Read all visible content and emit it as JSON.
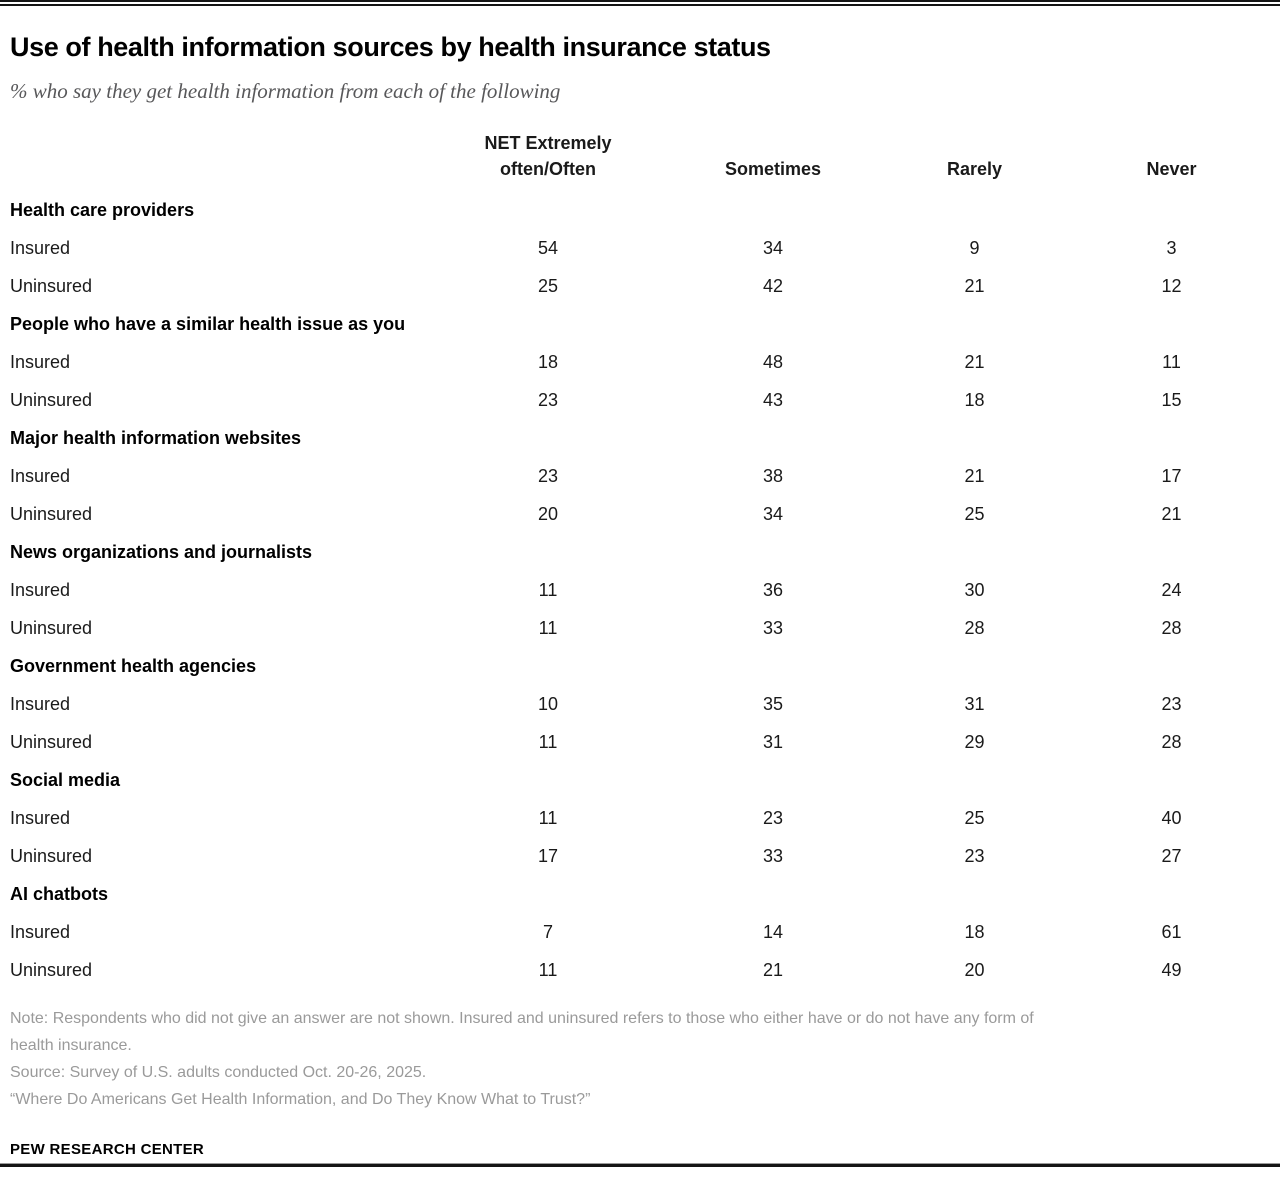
{
  "header": {
    "title": "Use of health information sources by health insurance status",
    "subtitle": "% who say they get health information from each of the following"
  },
  "table": {
    "column_headers": [
      "NET Extremely\noften/Often",
      "Sometimes",
      "Rarely",
      "Never"
    ]
  },
  "chart_data": {
    "type": "table",
    "title": "Use of health information sources by health insurance status",
    "subtitle": "% who say they get health information from each of the following",
    "columns": [
      "NET Extremely often/Often",
      "Sometimes",
      "Rarely",
      "Never"
    ],
    "row_groups_are": "health information sources",
    "rows_are": "insurance status",
    "sections": [
      {
        "category": "Health care providers",
        "rows": [
          {
            "label": "Insured",
            "values": [
              54,
              34,
              9,
              3
            ]
          },
          {
            "label": "Uninsured",
            "values": [
              25,
              42,
              21,
              12
            ]
          }
        ]
      },
      {
        "category": "People who have a similar health issue as you",
        "rows": [
          {
            "label": "Insured",
            "values": [
              18,
              48,
              21,
              11
            ]
          },
          {
            "label": "Uninsured",
            "values": [
              23,
              43,
              18,
              15
            ]
          }
        ]
      },
      {
        "category": "Major health information websites",
        "rows": [
          {
            "label": "Insured",
            "values": [
              23,
              38,
              21,
              17
            ]
          },
          {
            "label": "Uninsured",
            "values": [
              20,
              34,
              25,
              21
            ]
          }
        ]
      },
      {
        "category": "News organizations and journalists",
        "rows": [
          {
            "label": "Insured",
            "values": [
              11,
              36,
              30,
              24
            ]
          },
          {
            "label": "Uninsured",
            "values": [
              11,
              33,
              28,
              28
            ]
          }
        ]
      },
      {
        "category": "Government health agencies",
        "rows": [
          {
            "label": "Insured",
            "values": [
              10,
              35,
              31,
              23
            ]
          },
          {
            "label": "Uninsured",
            "values": [
              11,
              31,
              29,
              28
            ]
          }
        ]
      },
      {
        "category": "Social media",
        "rows": [
          {
            "label": "Insured",
            "values": [
              11,
              23,
              25,
              40
            ]
          },
          {
            "label": "Uninsured",
            "values": [
              17,
              33,
              23,
              27
            ]
          }
        ]
      },
      {
        "category": "AI chatbots",
        "rows": [
          {
            "label": "Insured",
            "values": [
              7,
              14,
              18,
              61
            ]
          },
          {
            "label": "Uninsured",
            "values": [
              11,
              21,
              20,
              49
            ]
          }
        ]
      }
    ]
  },
  "footer": {
    "note": "Note: Respondents who did not give an answer are not shown. Insured and uninsured refers to those who either have or do not have any form of health insurance.",
    "source": "Source: Survey of U.S. adults conducted Oct. 20-26, 2025.",
    "report": "“Where Do Americans Get Health Information, and Do They Know What to Trust?”",
    "brand": "PEW RESEARCH CENTER"
  },
  "colors": {
    "title": "#000000",
    "subtitle": "#58585a",
    "body_text": "#1a1a1a",
    "notes": "#9a9a9a",
    "rules": "#151515",
    "background": "#ffffff"
  }
}
